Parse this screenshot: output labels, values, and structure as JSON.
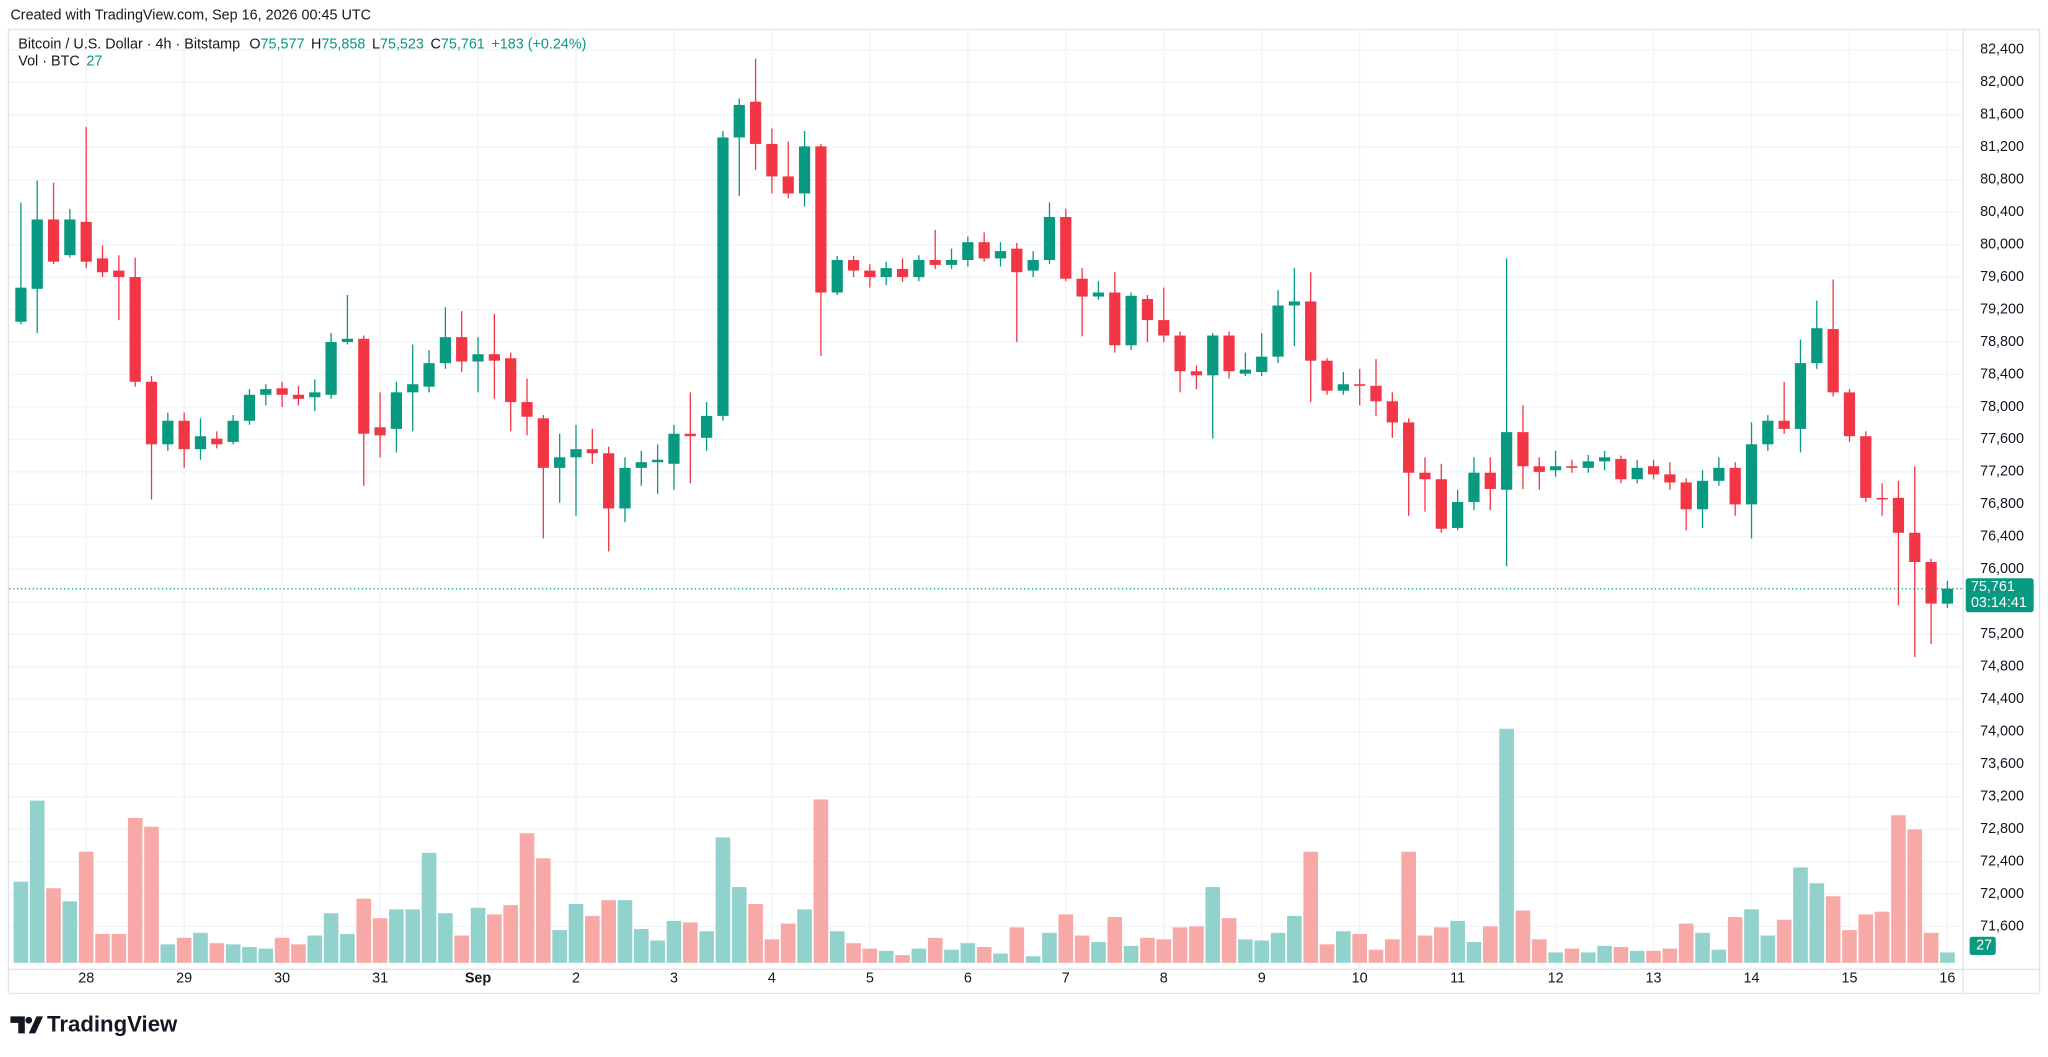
{
  "chart_data": {
    "type": "candlestick",
    "created": "Created with TradingView.com, Sep 16, 2026 00:45 UTC",
    "title": "Bitcoin / U.S. Dollar · 4h · Bitstamp",
    "ohlc_letters": [
      "O",
      "H",
      "L",
      "C"
    ],
    "ohlc_labels": [
      "75,577",
      "75,858",
      "75,523",
      "75,761"
    ],
    "change_label": "+183 (+0.24%)",
    "volume_title": "Vol · BTC",
    "last_price_label": "75,761",
    "countdown": "03:14:41",
    "brand": "TradingView",
    "up_color": "#089981",
    "down_color": "#f23645",
    "volume_up_color": "#92d2cc",
    "volume_down_color": "#f7a9a7",
    "grid": true,
    "xlim": [
      -1.28,
      118.96
    ],
    "xticks": [
      {
        "value": 4,
        "label": "28"
      },
      {
        "value": 10,
        "label": "29"
      },
      {
        "value": 16,
        "label": "30"
      },
      {
        "value": 22,
        "label": "31"
      },
      {
        "value": 28,
        "label": "Sep"
      },
      {
        "value": 34,
        "label": "2"
      },
      {
        "value": 40,
        "label": "3"
      },
      {
        "value": 46,
        "label": "4"
      },
      {
        "value": 52,
        "label": "5"
      },
      {
        "value": 58,
        "label": "6"
      },
      {
        "value": 64,
        "label": "7"
      },
      {
        "value": 70,
        "label": "8"
      },
      {
        "value": 76,
        "label": "9"
      },
      {
        "value": 82,
        "label": "10"
      },
      {
        "value": 88,
        "label": "11"
      },
      {
        "value": 94,
        "label": "12"
      },
      {
        "value": 100,
        "label": "13"
      },
      {
        "value": 106,
        "label": "14"
      },
      {
        "value": 112,
        "label": "15"
      },
      {
        "value": 118,
        "label": "16"
      }
    ],
    "ylim": [
      71073,
      82657
    ],
    "yticks": [
      {
        "value": 71600,
        "label": "71,600"
      },
      {
        "value": 72000,
        "label": "72,000"
      },
      {
        "value": 72400,
        "label": "72,400"
      },
      {
        "value": 72800,
        "label": "72,800"
      },
      {
        "value": 73200,
        "label": "73,200"
      },
      {
        "value": 73600,
        "label": "73,600"
      },
      {
        "value": 74000,
        "label": "74,000"
      },
      {
        "value": 74400,
        "label": "74,400"
      },
      {
        "value": 74800,
        "label": "74,800"
      },
      {
        "value": 75200,
        "label": "75,200"
      },
      {
        "value": 75600,
        "label": "75,600"
      },
      {
        "value": 76000,
        "label": "76,000"
      },
      {
        "value": 76400,
        "label": "76,400"
      },
      {
        "value": 76800,
        "label": "76,800"
      },
      {
        "value": 77200,
        "label": "77,200"
      },
      {
        "value": 77600,
        "label": "77,600"
      },
      {
        "value": 78000,
        "label": "78,000"
      },
      {
        "value": 78400,
        "label": "78,400"
      },
      {
        "value": 78800,
        "label": "78,800"
      },
      {
        "value": 79200,
        "label": "79,200"
      },
      {
        "value": 79600,
        "label": "79,600"
      },
      {
        "value": 80000,
        "label": "80,000"
      },
      {
        "value": 80400,
        "label": "80,400"
      },
      {
        "value": 80800,
        "label": "80,800"
      },
      {
        "value": 81200,
        "label": "81,200"
      },
      {
        "value": 81600,
        "label": "81,600"
      },
      {
        "value": 82000,
        "label": "82,000"
      },
      {
        "value": 82400,
        "label": "82,400"
      }
    ],
    "vlim": [
      0,
      2430
    ],
    "open": [
      79050,
      79455,
      80310,
      79870,
      80280,
      79830,
      79680,
      79600,
      78310,
      77540,
      77830,
      77480,
      77610,
      77570,
      77830,
      78150,
      78230,
      78150,
      78120,
      78150,
      78800,
      78840,
      77750,
      77730,
      78180,
      78250,
      78540,
      78860,
      78560,
      78650,
      78600,
      78060,
      77860,
      77250,
      77380,
      77480,
      77430,
      76750,
      77250,
      77320,
      77300,
      77670,
      77620,
      77890,
      81320,
      81760,
      81240,
      80840,
      80630,
      81210,
      79410,
      79810,
      79680,
      79600,
      79700,
      79600,
      79810,
      79750,
      79810,
      80030,
      79830,
      79950,
      79680,
      79810,
      80340,
      79580,
      79360,
      79410,
      78760,
      79330,
      79070,
      78880,
      78440,
      78390,
      78880,
      78410,
      78430,
      78620,
      79250,
      79300,
      78570,
      78200,
      78280,
      78260,
      78070,
      77810,
      77190,
      77110,
      76510,
      76830,
      77190,
      76980,
      77690,
      77270,
      77220,
      77270,
      77250,
      77330,
      77360,
      77110,
      77270,
      77170,
      77070,
      76740,
      77090,
      77250,
      76800,
      77540,
      77830,
      77730,
      78540,
      78960,
      78180,
      77640,
      76880,
      76880,
      76450,
      76090,
      75577
    ],
    "high": [
      80517,
      80790,
      80760,
      80440,
      81450,
      79990,
      79870,
      79840,
      78380,
      77930,
      77930,
      77860,
      77700,
      77900,
      78220,
      78280,
      78310,
      78260,
      78340,
      78910,
      79380,
      78880,
      78180,
      78310,
      78770,
      78700,
      79230,
      79180,
      78860,
      79150,
      78670,
      78350,
      77900,
      77670,
      77780,
      77730,
      77510,
      77380,
      77460,
      77540,
      77780,
      78180,
      78060,
      81400,
      81800,
      82290,
      81430,
      81270,
      81400,
      81240,
      79860,
      79860,
      79760,
      79790,
      79830,
      79870,
      80180,
      79950,
      80100,
      80150,
      80030,
      80020,
      79920,
      80520,
      80440,
      79710,
      79550,
      79660,
      79410,
      79380,
      79470,
      78930,
      78510,
      78910,
      78930,
      78670,
      78910,
      79440,
      79710,
      79660,
      78600,
      78430,
      78470,
      78590,
      78180,
      77860,
      77380,
      77300,
      76980,
      77380,
      77380,
      79830,
      78020,
      77380,
      77460,
      77350,
      77410,
      77460,
      77400,
      77350,
      77350,
      77320,
      77120,
      77220,
      77380,
      77320,
      77810,
      77900,
      78310,
      78830,
      79310,
      79570,
      78220,
      77700,
      77060,
      77090,
      77270,
      76130,
      75858
    ],
    "low": [
      79020,
      78910,
      79760,
      79840,
      79710,
      79600,
      79070,
      78250,
      76860,
      77460,
      77250,
      77350,
      77490,
      77540,
      77780,
      78020,
      78000,
      78020,
      77950,
      78100,
      78770,
      77030,
      77380,
      77440,
      77700,
      78180,
      78470,
      78430,
      78180,
      78100,
      77700,
      77650,
      76380,
      76820,
      76660,
      77300,
      76220,
      76580,
      77030,
      76930,
      76980,
      77060,
      77460,
      77830,
      80600,
      80920,
      80630,
      80570,
      80470,
      78630,
      79380,
      79600,
      79470,
      79500,
      79540,
      79550,
      79700,
      79700,
      79730,
      79790,
      79730,
      78800,
      79600,
      79760,
      79550,
      78870,
      79320,
      78670,
      78700,
      78800,
      78800,
      78180,
      78220,
      77610,
      78350,
      78380,
      78380,
      78540,
      78750,
      78060,
      78150,
      78150,
      78020,
      77890,
      77620,
      76660,
      76710,
      76450,
      76480,
      76730,
      76730,
      76040,
      76990,
      76980,
      77140,
      77190,
      77190,
      77220,
      77060,
      77060,
      77110,
      76980,
      76480,
      76510,
      77030,
      76660,
      76380,
      77460,
      77670,
      77440,
      78470,
      78130,
      77570,
      76830,
      76660,
      75560,
      74920,
      75080,
      75523
    ],
    "close": [
      79470,
      80310,
      79790,
      80310,
      79790,
      79660,
      79600,
      78310,
      77540,
      77830,
      77480,
      77640,
      77540,
      77830,
      78150,
      78220,
      78150,
      78100,
      78180,
      78800,
      78840,
      77670,
      77650,
      78180,
      78280,
      78540,
      78860,
      78560,
      78650,
      78570,
      78060,
      77880,
      77250,
      77380,
      77480,
      77430,
      76750,
      77250,
      77320,
      77350,
      77670,
      77640,
      77890,
      81320,
      81720,
      81240,
      80840,
      80630,
      81210,
      79410,
      79810,
      79680,
      79600,
      79710,
      79600,
      79810,
      79750,
      79810,
      80030,
      79830,
      79920,
      79660,
      79810,
      80340,
      79580,
      79360,
      79410,
      78760,
      79370,
      79070,
      78880,
      78440,
      78390,
      78880,
      78440,
      78460,
      78620,
      79250,
      79300,
      78570,
      78200,
      78280,
      78260,
      78070,
      77810,
      77190,
      77110,
      76500,
      76830,
      77190,
      76990,
      77690,
      77270,
      77200,
      77270,
      77250,
      77330,
      77380,
      77110,
      77250,
      77170,
      77070,
      76740,
      77090,
      77250,
      76800,
      77540,
      77830,
      77730,
      78540,
      78970,
      78180,
      77640,
      76880,
      76860,
      76450,
      76090,
      75578,
      75761
    ],
    "volume": [
      211,
      422,
      194,
      160,
      289,
      75,
      75,
      377,
      354,
      48,
      65,
      78,
      51,
      48,
      41,
      37,
      65,
      48,
      71,
      129,
      75,
      167,
      116,
      139,
      139,
      286,
      129,
      71,
      143,
      126,
      150,
      337,
      272,
      85,
      153,
      122,
      163,
      163,
      88,
      58,
      109,
      105,
      82,
      326,
      197,
      153,
      61,
      102,
      139,
      425,
      82,
      51,
      37,
      31,
      20,
      37,
      65,
      34,
      51,
      41,
      24,
      92,
      17,
      78,
      126,
      71,
      54,
      119,
      44,
      65,
      61,
      92,
      95,
      197,
      116,
      61,
      58,
      78,
      122,
      289,
      48,
      82,
      75,
      34,
      61,
      289,
      71,
      92,
      109,
      54,
      95,
      609,
      136,
      61,
      27,
      37,
      27,
      44,
      41,
      31,
      31,
      37,
      102,
      78,
      34,
      119,
      139,
      71,
      112,
      248,
      207,
      173,
      85,
      126,
      133,
      384,
      347,
      78,
      27
    ]
  }
}
